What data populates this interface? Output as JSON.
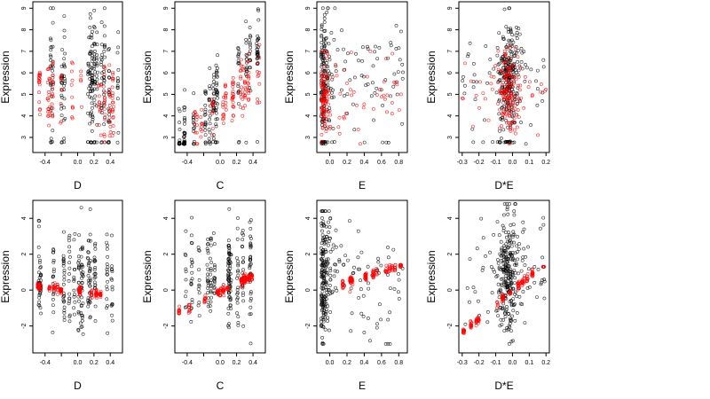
{
  "chart_data": [
    {
      "type": "scatter",
      "xlabel": "D",
      "ylabel": "Expression",
      "xlim": [
        -0.55,
        0.55
      ],
      "ylim": [
        2.3,
        9.3
      ],
      "xticks": [
        -0.4,
        -0.2,
        0.0,
        0.2,
        0.4
      ],
      "xtick_labels": [
        "-0.4",
        "",
        "0.0",
        "0.2",
        "0.4"
      ],
      "yticks": [
        3,
        4,
        5,
        6,
        7,
        8,
        9
      ],
      "ytick_labels": [
        "3",
        "4",
        "5",
        "6",
        "7",
        "8",
        "9"
      ],
      "series": [
        {
          "color": "#000000",
          "count": 260,
          "x_range": [
            -0.5,
            0.5
          ],
          "y_range": [
            2.7,
            9.0
          ],
          "floor": 2.78,
          "pattern": "scatter_floor"
        },
        {
          "color": "#ff0000",
          "count": 140,
          "x_range": [
            -0.5,
            0.5
          ],
          "y_range": [
            2.7,
            6.7
          ],
          "pattern": "fan"
        }
      ]
    },
    {
      "type": "scatter",
      "xlabel": "C",
      "ylabel": "Expression",
      "xlim": [
        -0.55,
        0.55
      ],
      "ylim": [
        2.3,
        9.3
      ],
      "xticks": [
        -0.4,
        -0.2,
        0.0,
        0.2,
        0.4
      ],
      "xtick_labels": [
        "-0.4",
        "",
        "0.0",
        "0.2",
        "0.4"
      ],
      "yticks": [
        3,
        4,
        5,
        6,
        7,
        8,
        9
      ],
      "ytick_labels": [
        "3",
        "4",
        "5",
        "6",
        "7",
        "8",
        "9"
      ],
      "series": [
        {
          "color": "#000000",
          "count": 240,
          "x_range": [
            -0.5,
            0.5
          ],
          "y_range": [
            2.7,
            9.0
          ],
          "floor": 2.78,
          "pattern": "rising"
        },
        {
          "color": "#ff0000",
          "count": 130,
          "x_range": [
            -0.5,
            0.5
          ],
          "y_range": [
            2.7,
            7.3
          ],
          "pattern": "rising"
        }
      ]
    },
    {
      "type": "scatter",
      "xlabel": "E",
      "ylabel": "Expression",
      "xlim": [
        -0.15,
        0.9
      ],
      "ylim": [
        2.3,
        9.3
      ],
      "xticks": [
        0.0,
        0.2,
        0.4,
        0.6,
        0.8
      ],
      "xtick_labels": [
        "0.0",
        "0.2",
        "0.4",
        "0.6",
        "0.8"
      ],
      "yticks": [
        3,
        4,
        5,
        6,
        7,
        8,
        9
      ],
      "ytick_labels": [
        "3",
        "4",
        "5",
        "6",
        "7",
        "8",
        "9"
      ],
      "series": [
        {
          "color": "#000000",
          "count": 230,
          "x_range": [
            -0.1,
            0.85
          ],
          "y_range": [
            2.7,
            9.0
          ],
          "floor": 2.78,
          "pattern": "left_cluster"
        },
        {
          "color": "#ff0000",
          "count": 130,
          "x_range": [
            -0.1,
            0.85
          ],
          "y_range": [
            2.7,
            7.0
          ],
          "pattern": "left_cluster"
        }
      ]
    },
    {
      "type": "scatter",
      "xlabel": "D*E",
      "ylabel": "Expression",
      "xlim": [
        -0.32,
        0.22
      ],
      "ylim": [
        2.3,
        9.3
      ],
      "xticks": [
        -0.3,
        -0.2,
        -0.1,
        0.0,
        0.1,
        0.2
      ],
      "xtick_labels": [
        "-0.3",
        "-0.2",
        "-0.1",
        "0.0",
        "0.1",
        "0.2"
      ],
      "yticks": [
        3,
        4,
        5,
        6,
        7,
        8,
        9
      ],
      "ytick_labels": [
        "3",
        "4",
        "5",
        "6",
        "7",
        "8",
        "9"
      ],
      "series": [
        {
          "color": "#000000",
          "count": 300,
          "x_range": [
            -0.3,
            0.2
          ],
          "y_range": [
            2.7,
            9.0
          ],
          "floor": 2.78,
          "pattern": "center_column"
        },
        {
          "color": "#ff0000",
          "count": 160,
          "x_range": [
            -0.3,
            0.2
          ],
          "y_range": [
            2.7,
            7.5
          ],
          "pattern": "center_column"
        }
      ]
    },
    {
      "type": "scatter",
      "xlabel": "D",
      "ylabel": "Expression",
      "xlim": [
        -0.55,
        0.55
      ],
      "ylim": [
        -3.5,
        5.0
      ],
      "xticks": [
        -0.4,
        -0.2,
        0.0,
        0.2,
        0.4
      ],
      "xtick_labels": [
        "-0.4",
        "",
        "0.0",
        "0.2",
        "0.4"
      ],
      "yticks": [
        -2,
        0,
        2,
        4
      ],
      "ytick_labels": [
        "-2",
        "0",
        "2",
        "4"
      ],
      "series": [
        {
          "color": "#000000",
          "count": 260,
          "x_range": [
            -0.5,
            0.5
          ],
          "y_range": [
            -3.2,
            4.6
          ],
          "pattern": "scatter"
        },
        {
          "color": "#ff0000",
          "count": 160,
          "x_range": [
            -0.5,
            0.5
          ],
          "y_range": [
            -0.6,
            0.4
          ],
          "pattern": "line",
          "slope": -0.6,
          "intercept": -0.05
        }
      ]
    },
    {
      "type": "scatter",
      "xlabel": "C",
      "ylabel": "Expression",
      "xlim": [
        -0.55,
        0.55
      ],
      "ylim": [
        -3.5,
        5.0
      ],
      "xticks": [
        -0.4,
        -0.2,
        0.0,
        0.2,
        0.4
      ],
      "xtick_labels": [
        "-0.4",
        "",
        "0.0",
        "0.2",
        "0.4"
      ],
      "yticks": [
        -2,
        0,
        2,
        4
      ],
      "ytick_labels": [
        "-2",
        "0",
        "2",
        "4"
      ],
      "series": [
        {
          "color": "#000000",
          "count": 240,
          "x_range": [
            -0.5,
            0.5
          ],
          "y_range": [
            -3.0,
            4.6
          ],
          "pattern": "scatter"
        },
        {
          "color": "#ff0000",
          "count": 160,
          "x_range": [
            -0.5,
            0.5
          ],
          "y_range": [
            -1.3,
            1.2
          ],
          "pattern": "line",
          "slope": 2.3,
          "intercept": -0.1
        }
      ]
    },
    {
      "type": "scatter",
      "xlabel": "E",
      "ylabel": "Expression",
      "xlim": [
        -0.15,
        0.9
      ],
      "ylim": [
        -3.5,
        5.0
      ],
      "xticks": [
        0.0,
        0.2,
        0.4,
        0.6,
        0.8
      ],
      "xtick_labels": [
        "0.0",
        "0.2",
        "0.4",
        "0.6",
        "0.8"
      ],
      "yticks": [
        -2,
        0,
        2,
        4
      ],
      "ytick_labels": [
        "-2",
        "0",
        "2",
        "4"
      ],
      "series": [
        {
          "color": "#000000",
          "count": 260,
          "x_range": [
            -0.1,
            0.85
          ],
          "y_range": [
            -3.0,
            4.4
          ],
          "pattern": "left_cluster"
        },
        {
          "color": "#ff0000",
          "count": 140,
          "x_range": [
            -0.1,
            0.85
          ],
          "y_range": [
            -0.2,
            1.4
          ],
          "pattern": "line",
          "slope": 1.6,
          "intercept": 0.1
        }
      ]
    },
    {
      "type": "scatter",
      "xlabel": "D*E",
      "ylabel": "Expression",
      "xlim": [
        -0.32,
        0.22
      ],
      "ylim": [
        -3.5,
        5.0
      ],
      "xticks": [
        -0.3,
        -0.2,
        -0.1,
        0.0,
        0.1,
        0.2
      ],
      "xtick_labels": [
        "-0.3",
        "-0.2",
        "-0.1",
        "0.0",
        "0.1",
        "0.2"
      ],
      "yticks": [
        -2,
        0,
        2,
        4
      ],
      "ytick_labels": [
        "-2",
        "0",
        "2",
        "4"
      ],
      "series": [
        {
          "color": "#000000",
          "count": 300,
          "x_range": [
            -0.3,
            0.2
          ],
          "y_range": [
            -3.0,
            4.8
          ],
          "pattern": "center_column"
        },
        {
          "color": "#ff0000",
          "count": 150,
          "x_range": [
            -0.3,
            0.2
          ],
          "y_range": [
            -2.4,
            1.3
          ],
          "pattern": "line",
          "slope": 8.0,
          "intercept": 0.0
        }
      ]
    }
  ]
}
